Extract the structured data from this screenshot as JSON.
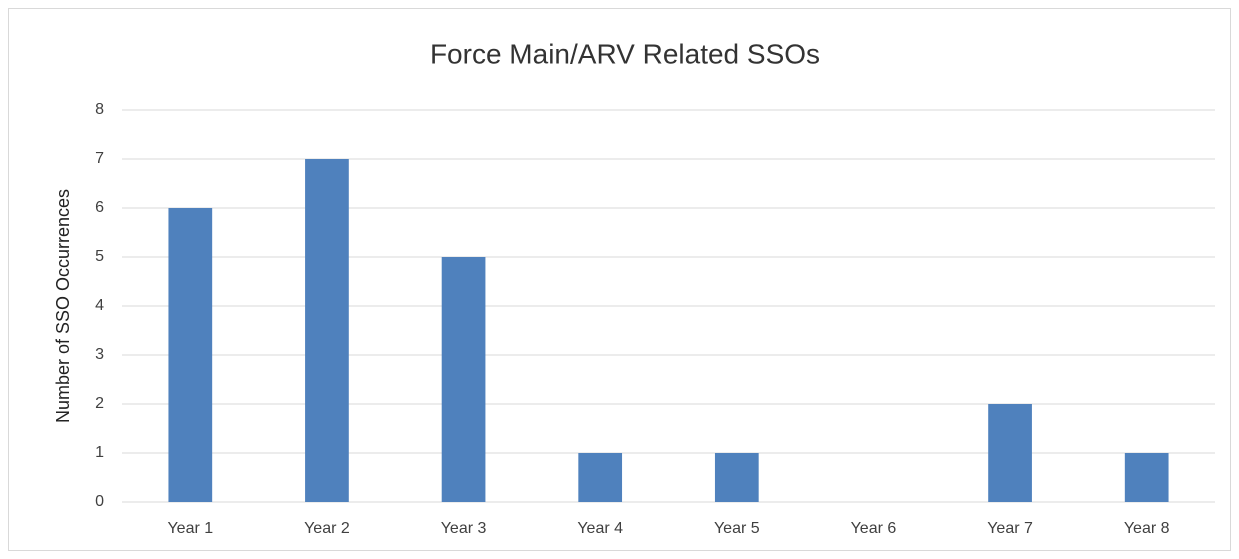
{
  "chart_data": {
    "type": "bar",
    "title": "Force Main/ARV Related SSOs",
    "y_label": "Number of SSO Occurrences",
    "categories": [
      "Year 1",
      "Year 2",
      "Year 3",
      "Year 4",
      "Year 5",
      "Year 6",
      "Year 7",
      "Year 8"
    ],
    "values": [
      6,
      7,
      5,
      1,
      1,
      0,
      2,
      1
    ],
    "color": "#4f81bd",
    "ylim": [
      0,
      8
    ],
    "yticks": [
      0,
      1,
      2,
      3,
      4,
      5,
      6,
      7,
      8
    ],
    "grid": true
  }
}
